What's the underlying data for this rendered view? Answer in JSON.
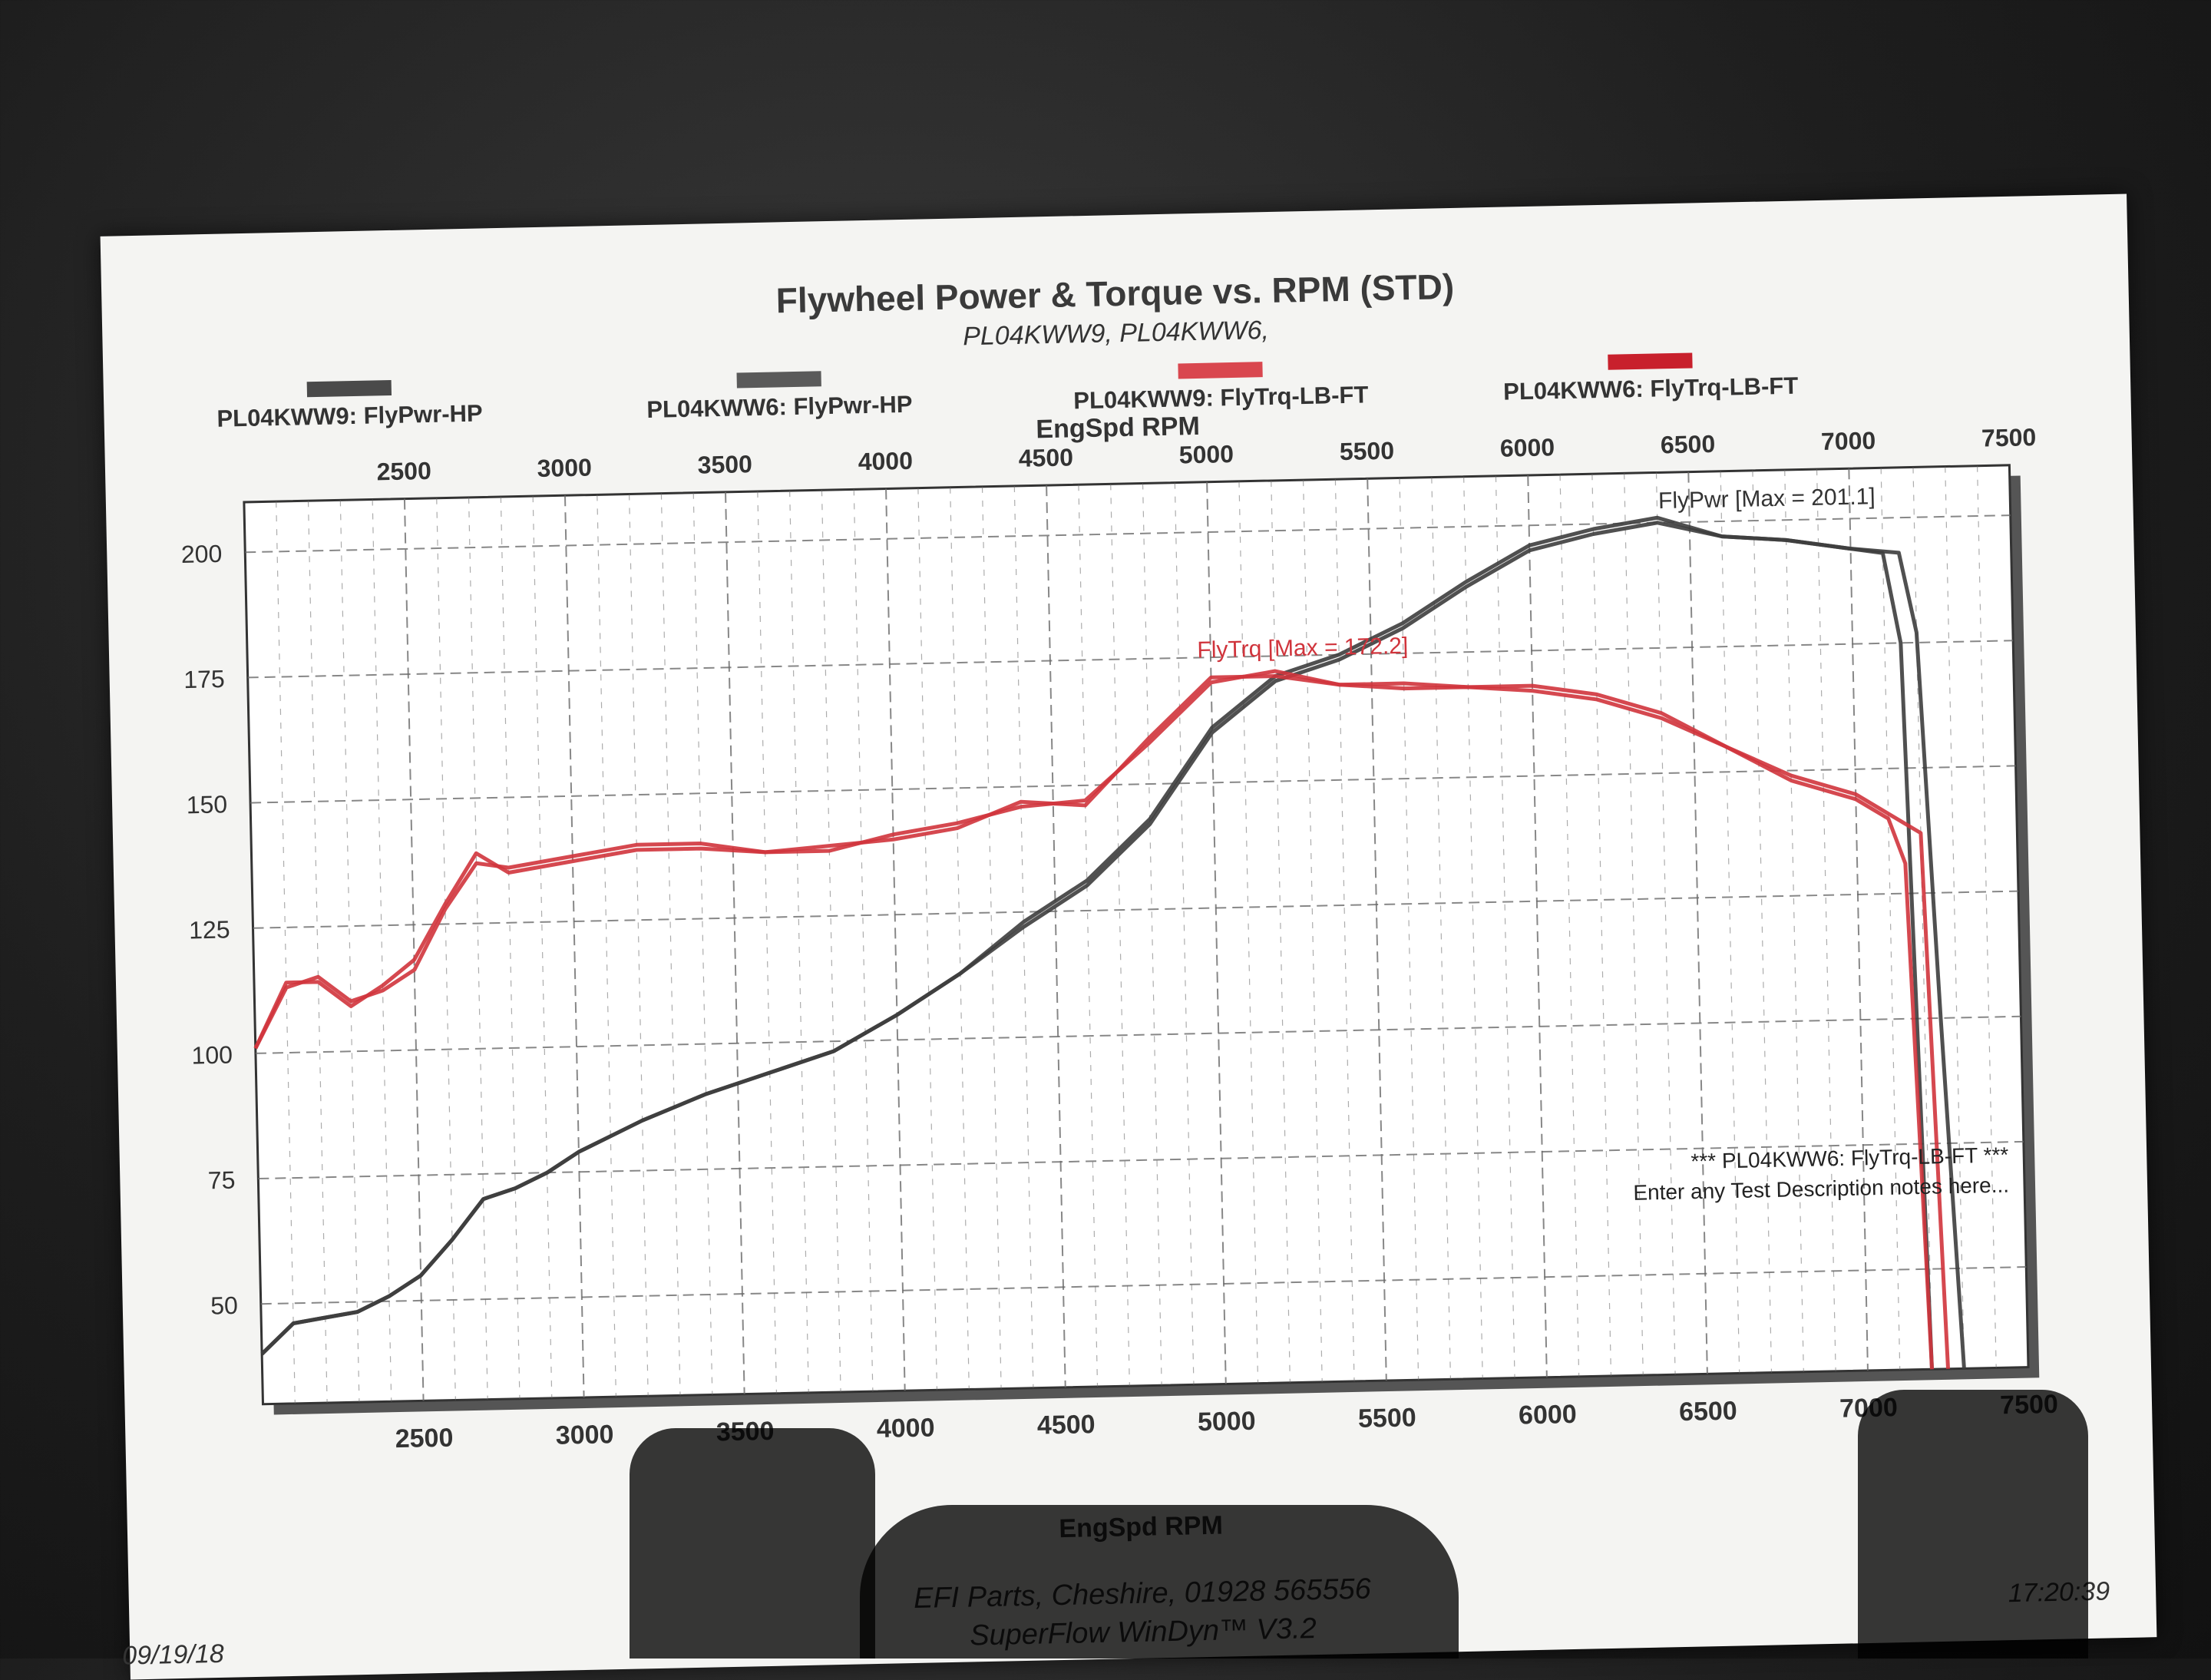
{
  "header": {
    "title": "Flywheel Power & Torque vs. RPM (STD)",
    "subtitle": "PL04KWW9, PL04KWW6,"
  },
  "legend": [
    {
      "label": "PL04KWW9: FlyPwr-HP",
      "color": "#4a4a4a"
    },
    {
      "label": "PL04KWW6: FlyPwr-HP",
      "color": "#5a5a5a"
    },
    {
      "label": "PL04KWW9: FlyTrq-LB-FT",
      "color": "#d9474f"
    },
    {
      "label": "PL04KWW6: FlyTrq-LB-FT",
      "color": "#c8202c"
    }
  ],
  "axes": {
    "top_title": "EngSpd RPM",
    "bottom_title": "EngSpd RPM"
  },
  "annotations": {
    "power_max": "FlyPwr [Max = 201.1]",
    "torque_max": "FlyTrq [Max = 172.2]",
    "note_line1": "*** PL04KWW6: FlyTrq-LB-FT ***",
    "note_line2": "Enter any Test Description notes here..."
  },
  "footer": {
    "line1": "EFI Parts, Cheshire, 01928 565556",
    "line2": "SuperFlow WinDyn™ V3.2",
    "date": "09/19/18",
    "time": "17:20:39"
  },
  "colors": {
    "power": "#3d3d3d",
    "torque": "#d0343c",
    "grid": "#6a6a6a"
  },
  "chart_data": {
    "type": "line",
    "title": "Flywheel Power & Torque vs. RPM (STD)",
    "xlabel": "EngSpd RPM",
    "ylabel": "",
    "xlim": [
      2000,
      7500
    ],
    "ylim": [
      30,
      210
    ],
    "x_ticks": [
      2500,
      3000,
      3500,
      4000,
      4500,
      5000,
      5500,
      6000,
      6500,
      7000,
      7500
    ],
    "y_ticks": [
      50,
      75,
      100,
      125,
      150,
      175,
      200
    ],
    "grid": true,
    "legend_position": "top",
    "series": [
      {
        "name": "PL04KWW9: FlyPwr-HP",
        "x": [
          2000,
          2100,
          2200,
          2300,
          2400,
          2500,
          2600,
          2700,
          2800,
          2900,
          3000,
          3200,
          3400,
          3600,
          3800,
          4000,
          4200,
          4400,
          4600,
          4800,
          5000,
          5200,
          5400,
          5600,
          5800,
          6000,
          6200,
          6400,
          6600,
          6800,
          7000,
          7100,
          7150,
          7200
        ],
        "y": [
          40,
          46,
          47,
          48,
          51,
          55,
          62,
          70,
          72,
          75,
          79,
          85,
          90,
          94,
          98,
          105,
          113,
          122,
          130,
          142,
          160,
          170,
          174,
          180,
          188,
          195,
          198,
          200,
          197,
          196,
          194,
          193,
          175,
          30
        ]
      },
      {
        "name": "PL04KWW6: FlyPwr-HP",
        "x": [
          2000,
          2100,
          2200,
          2300,
          2400,
          2500,
          2600,
          2700,
          2800,
          2900,
          3000,
          3200,
          3400,
          3600,
          3800,
          4000,
          4200,
          4400,
          4600,
          4800,
          5000,
          5200,
          5400,
          5600,
          5800,
          6000,
          6200,
          6400,
          6600,
          6800,
          7000,
          7150,
          7200,
          7250,
          7300
        ],
        "y": [
          40,
          46,
          47,
          48,
          51,
          55,
          62,
          70,
          72,
          75,
          79,
          85,
          90,
          94,
          98,
          105,
          113,
          123,
          131,
          143,
          161,
          171,
          175,
          181,
          189,
          196,
          199,
          201,
          197,
          196,
          194,
          193,
          177,
          100,
          30
        ]
      },
      {
        "name": "PL04KWW9: FlyTrq-LB-FT",
        "x": [
          2000,
          2100,
          2200,
          2300,
          2400,
          2500,
          2600,
          2700,
          2800,
          3000,
          3200,
          3400,
          3600,
          3800,
          4000,
          4200,
          4400,
          4600,
          4800,
          5000,
          5200,
          5400,
          5600,
          5800,
          6000,
          6200,
          6400,
          6600,
          6800,
          7000,
          7100,
          7150,
          7200
        ],
        "y": [
          101,
          114,
          114,
          109,
          113,
          118,
          129,
          139,
          135,
          137,
          139,
          139,
          138,
          139,
          140,
          142,
          147,
          146,
          159,
          171,
          171,
          169,
          168,
          168,
          167,
          165,
          161,
          155,
          148,
          144,
          140,
          131,
          30
        ]
      },
      {
        "name": "PL04KWW6: FlyTrq-LB-FT",
        "x": [
          2000,
          2100,
          2200,
          2300,
          2400,
          2500,
          2600,
          2700,
          2800,
          3000,
          3200,
          3400,
          3600,
          3800,
          4000,
          4200,
          4400,
          4600,
          4800,
          5000,
          5200,
          5400,
          5600,
          5800,
          6000,
          6200,
          6400,
          6600,
          6800,
          7000,
          7150,
          7200,
          7250
        ],
        "y": [
          101,
          113,
          115,
          110,
          112,
          116,
          128,
          137,
          136,
          138,
          140,
          140,
          138,
          138,
          141,
          143,
          146,
          147,
          158,
          170,
          172,
          169,
          169,
          168,
          168,
          166,
          162,
          155,
          149,
          145,
          139,
          137,
          30
        ]
      }
    ]
  }
}
